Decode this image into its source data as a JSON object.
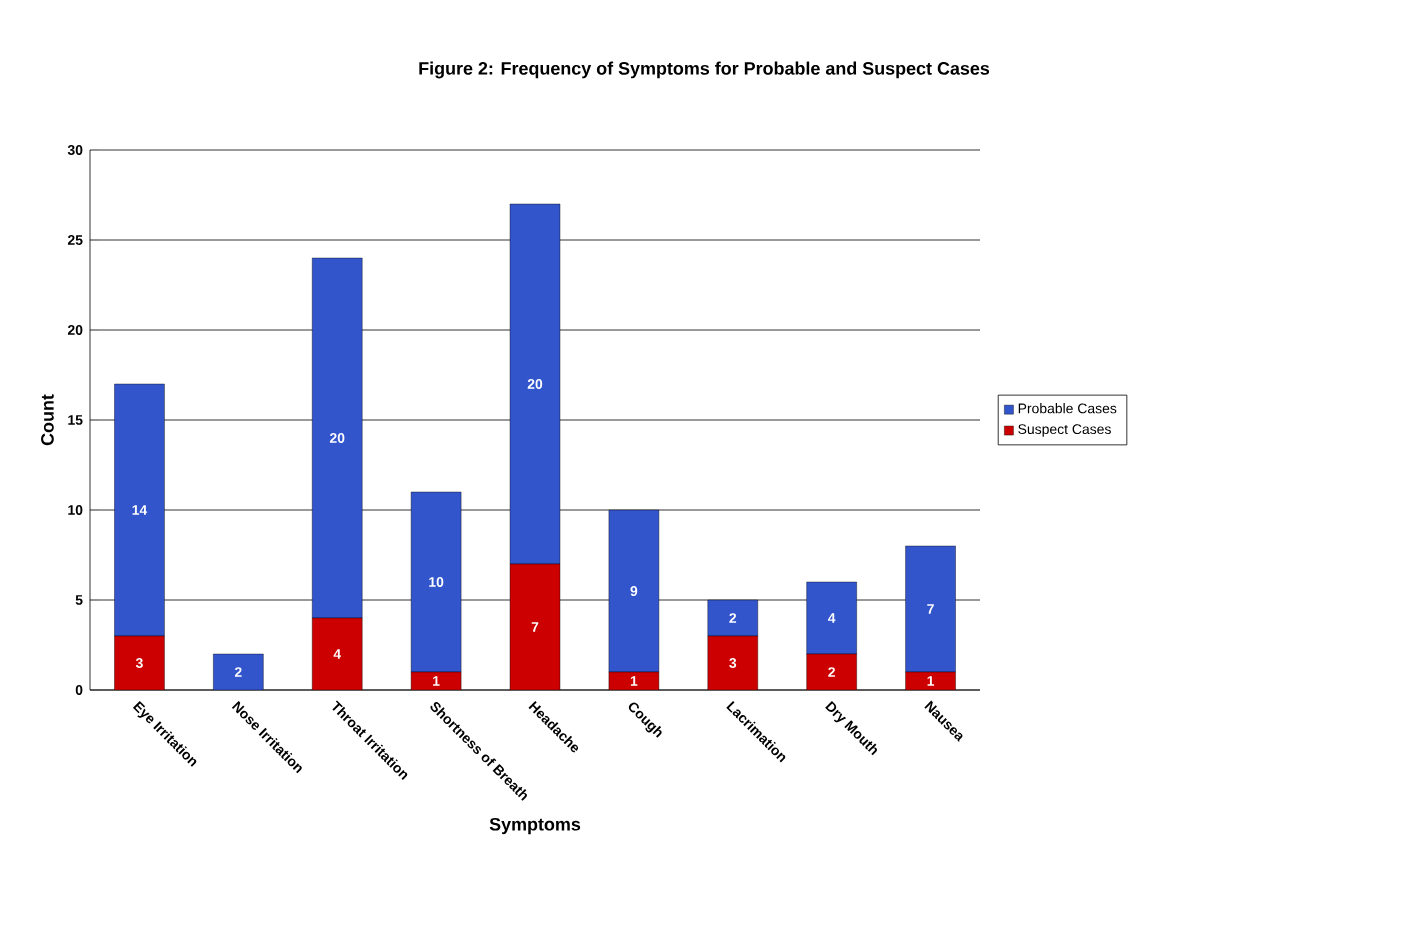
{
  "chart_data": {
    "type": "bar",
    "title": "Figure 2: Frequency of Symptoms for Probable and Suspect Cases",
    "xlabel": "Symptoms",
    "ylabel": "Count",
    "categories": [
      "Eye Irritation",
      "Nose Irritation",
      "Throat Irritation",
      "Shortness of Breath",
      "Headache",
      "Cough",
      "Lacrimation",
      "Dry Mouth",
      "Nausea"
    ],
    "stacked": true,
    "series": [
      {
        "name": "Suspect Cases",
        "color": "#cc0000",
        "values": [
          3,
          0,
          4,
          1,
          7,
          1,
          3,
          2,
          1
        ],
        "value_labels": [
          "3",
          null,
          "4",
          "1",
          "7",
          "1",
          "3",
          "2",
          "1"
        ]
      },
      {
        "name": "Probable Cases",
        "color": "#3355cc",
        "values": [
          14,
          2,
          20,
          10,
          20,
          9,
          2,
          4,
          7
        ],
        "value_labels": [
          "14",
          "2",
          "20",
          "10",
          "20",
          "9",
          "2",
          "4",
          "7"
        ]
      }
    ],
    "ylim": [
      0,
      30
    ],
    "yticks": [
      0,
      5,
      10,
      15,
      20,
      25,
      30
    ],
    "grid": "y",
    "legend": "right"
  }
}
